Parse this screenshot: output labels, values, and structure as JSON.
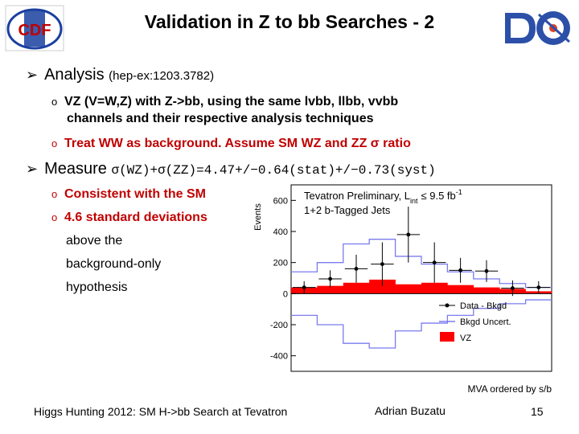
{
  "slide": {
    "title": "Validation in Z to bb Searches - 2",
    "bullet1_label": "Analysis",
    "bullet1_ref": "(hep-ex:1203.3782)",
    "sub1": "VZ (V=W,Z) with Z->bb, using the same lvbb, llbb, vvbb",
    "sub1_cont": "channels and their respective analysis techniques",
    "sub2": "Treat WW as background. Assume SM WZ and ZZ σ ratio",
    "bullet2_label": "Measure",
    "bullet2_formula": "σ(WZ)+σ(ZZ)=4.47+/−0.64(stat)+/−0.73(syst)",
    "sub3": "Consistent with the SM",
    "sub4": "4.6 standard deviations",
    "sub4_cont1": "above the",
    "sub4_cont2": "background-only",
    "sub4_cont3": "hypothesis",
    "footer_left": "Higgs Hunting 2012: SM H->bb Search at Tevatron",
    "footer_center": "Adrian Buzatu",
    "page_number": "15",
    "logo_left_text": "CDF"
  },
  "colors": {
    "red_text": "#c00000",
    "marker": "#1f3f9a",
    "vz_fill": "#ff0000",
    "uncert": "#7b7bf0"
  },
  "chart_data": {
    "type": "bar",
    "title": "Tevatron Preliminary, L",
    "title_sub": "int",
    "title_rest": "≤ 9.5 fb",
    "title_sup": "-1",
    "subtitle": "1+2 b-Tagged Jets",
    "ylabel": "Events",
    "xlabel": "MVA ordered by s/b",
    "ylim": [
      -500,
      700
    ],
    "yticks": [
      "600",
      "400",
      "200",
      "0",
      "-200",
      "-400"
    ],
    "ytick_values": [
      600,
      400,
      200,
      0,
      -200,
      -400
    ],
    "legend": [
      "Data - Bkgd",
      "Bkgd Uncert.",
      "VZ"
    ],
    "bins": 10,
    "vz": [
      40,
      50,
      70,
      90,
      60,
      70,
      55,
      40,
      30,
      15
    ],
    "uncert_hi": [
      140,
      200,
      320,
      350,
      240,
      190,
      140,
      95,
      65,
      40
    ],
    "uncert_lo": [
      -140,
      -200,
      -320,
      -350,
      -240,
      -190,
      -140,
      -95,
      -65,
      -40
    ],
    "data_minus_bkgd": [
      40,
      95,
      160,
      190,
      380,
      200,
      150,
      145,
      35,
      40
    ],
    "data_err": [
      40,
      55,
      90,
      140,
      180,
      130,
      80,
      70,
      50,
      40
    ]
  }
}
